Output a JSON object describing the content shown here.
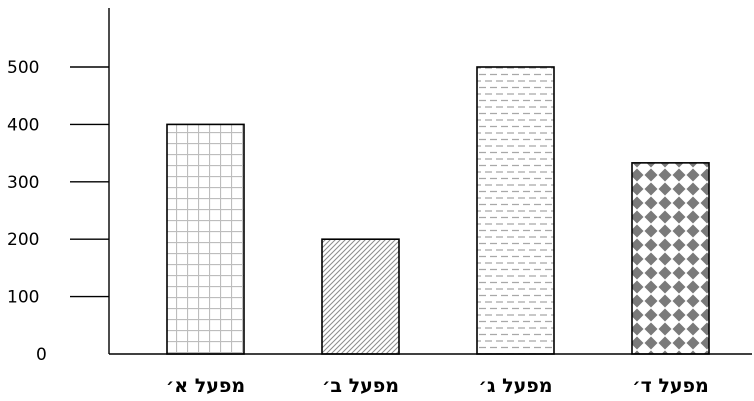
{
  "chart_data": {
    "type": "bar",
    "categories": [
      "מפעל א׳",
      "מפעל ב׳",
      "מפעל ג׳",
      "מפעל ד׳"
    ],
    "values": [
      400,
      200,
      500,
      333
    ],
    "patterns": [
      "grid",
      "diagonal",
      "dashes",
      "diamonds"
    ],
    "y_ticks": [
      0,
      100,
      200,
      300,
      400,
      500
    ],
    "ylim": [
      0,
      500
    ],
    "grid": false,
    "colors": {
      "axis": "#000000",
      "bar_outline": "#000000",
      "pattern_light": "#bdbdbd",
      "pattern_dark": "#7a7a7a"
    }
  }
}
